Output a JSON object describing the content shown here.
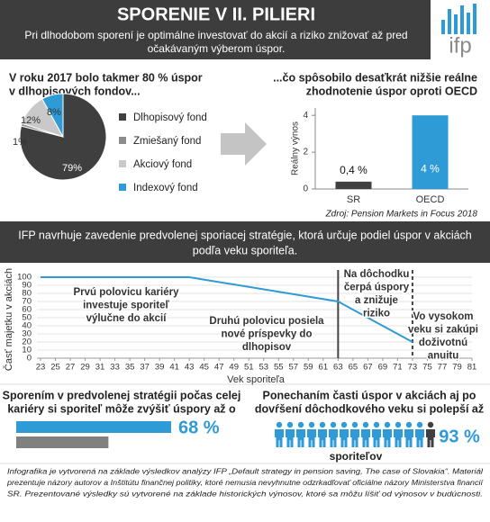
{
  "header": {
    "title": "SPORENIE V II. PILIERI",
    "subtitle": [
      "Pri dlhodobom sporení je optimálne investovať do akcií a riziko znižovať až pred",
      "očakávaným výberom úspor."
    ],
    "logo": "ifp"
  },
  "chart_data": [
    {
      "type": "pie",
      "title": [
        "V roku 2017 bolo takmer 80 % úspor",
        "v dlhopisových fondov..."
      ],
      "categories": [
        "Dlhopisový fond",
        "Zmiešaný fond",
        "Akciový fond",
        "Indexový fond"
      ],
      "values": [
        79,
        1,
        12,
        8
      ],
      "value_labels": [
        "79%",
        "1%",
        "12%",
        "8%"
      ],
      "colors": [
        "#3f3f3f",
        "#8c8c8c",
        "#c9c9c9",
        "#2e9bd6"
      ]
    },
    {
      "type": "bar",
      "title": [
        "...čo spôsobilo desaťkrát nižšie reálne",
        "zhodnotenie úspor oproti OECD"
      ],
      "categories": [
        "SR",
        "OECD"
      ],
      "values": [
        0.4,
        4
      ],
      "value_labels": [
        "0,4 %",
        "4 %"
      ],
      "colors": [
        "#3f3f3f",
        "#2e9bd6"
      ],
      "ylabel": "Reálny výnos",
      "ylim": [
        0,
        4.4
      ],
      "yticks": [
        0,
        2,
        4
      ],
      "source": "Zdroj: Pension Markets in Focus 2018"
    },
    {
      "type": "line",
      "x": [
        23,
        43,
        63,
        73
      ],
      "series": [
        {
          "values": [
            100,
            100,
            70,
            20
          ],
          "color": "#2e9bd6"
        }
      ],
      "xlim": [
        23,
        81
      ],
      "ylim": [
        0,
        100
      ],
      "xticks": [
        23,
        25,
        27,
        29,
        31,
        33,
        35,
        37,
        39,
        41,
        43,
        45,
        47,
        49,
        51,
        53,
        55,
        57,
        59,
        61,
        63,
        65,
        67,
        69,
        71,
        73,
        75,
        77,
        79,
        81
      ],
      "yticks": [
        0,
        10,
        20,
        30,
        40,
        50,
        60,
        70,
        80,
        90,
        100
      ],
      "grid": true,
      "xlabel": "Vek sporiteľa",
      "ylabel": "Časť majetku v akciách",
      "markers": [
        {
          "x": 63,
          "style": "solid"
        },
        {
          "x": 73,
          "style": "dashed"
        }
      ],
      "annotations": [
        [
          "Prvú polovicu kariéry",
          "investuje sporiteľ",
          "výlučne do akcií"
        ],
        [
          "Druhú polovicu posiela",
          "nové príspevky do",
          "dlhopisov"
        ],
        [
          "Na dôchodku",
          "čerpá úspory",
          "a znižuje",
          "riziko"
        ],
        [
          "Vo vysokom",
          "veku si zakúpi",
          "doživotnú",
          "anuitu"
        ]
      ]
    }
  ],
  "banner": [
    "IFP navrhuje zavedenie predvolenej sporiacej stratégie, ktorá určuje podiel úspor v akciách",
    "podľa veku sporiteľa."
  ],
  "bottom_left": {
    "text": [
      "Sporením v predvolenej stratégii počas celej",
      "kariéry si sporiteľ môže zvýšiť úspory až o"
    ],
    "values": [
      168,
      100
    ],
    "colors": [
      "#2e9bd6",
      "#808080"
    ],
    "value": "68 %"
  },
  "bottom_right": {
    "text": [
      "Ponechaním časti úspor v akciách aj po",
      "dovŕšení dôchodkového veku si polepší až"
    ],
    "icons": 15,
    "highlighted": 14,
    "value": "93 %",
    "caption": "sporiteľov"
  },
  "footer": [
    "Infografika je vytvorená na základe výsledkov analýzy IFP „Default strategy in pension saving, The case of Slovakia“. Materiál",
    "prezentuje názory autorov a Inštitútu finančnej politiky, ktoré nemusia nevyhnutne odzrkadľovať oficiálne názory Ministerstva financií",
    "SR. Prezentované výsledky sú vytvorené na základe historických výnosov, ktoré sa môžu líšiť od výnosov v budúcnosti."
  ]
}
